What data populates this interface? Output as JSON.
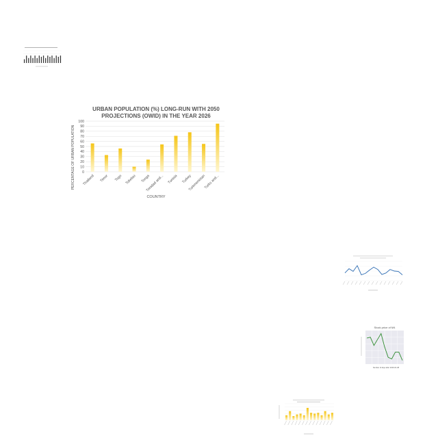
{
  "colors": {
    "bar": "#f5c518",
    "bar_fade": "#fff6cf",
    "line_blue": "#2f6db3",
    "line_green": "#2e8b2e",
    "grid": "#dddddd",
    "text": "#555555",
    "panel_gray": "#e9e9f0"
  },
  "chart_data": [
    {
      "type": "bar",
      "title": "",
      "xlabel": "",
      "ylabel": "",
      "categories": [
        "",
        "",
        "",
        "",
        "",
        "",
        "",
        "",
        "",
        "",
        "",
        "",
        "",
        "",
        "",
        "",
        "",
        ""
      ],
      "values": [
        30,
        60,
        40,
        60,
        40,
        60,
        40,
        60,
        50,
        60,
        40,
        60,
        50,
        60,
        40,
        60,
        50,
        60
      ],
      "ylim": [
        0,
        100
      ]
    },
    {
      "type": "bar",
      "title": "URBAN POPULATION (%) LONG-RUN WITH 2050 PROJECTIONS (OWID) IN THE YEAR 2026",
      "title_lines": [
        "URBAN POPULATION (%) LONG-RUN WITH 2050",
        "PROJECTIONS (OWID) IN THE YEAR 2026"
      ],
      "xlabel": "COUNTRY",
      "ylabel": "PERCENTAGE OF URBAN POPULATION",
      "categories": [
        "Thailand",
        "Timor",
        "Togo",
        "Tokelau",
        "Tonga",
        "Trinidad and...",
        "Tunisia",
        "Turkey",
        "Turkmenistan",
        "Turks and..."
      ],
      "values": [
        56,
        33,
        46,
        10,
        24,
        54,
        71,
        78,
        55,
        95
      ],
      "yticks": [
        0,
        10,
        20,
        30,
        40,
        50,
        60,
        70,
        80,
        90,
        100
      ],
      "ylim": [
        0,
        100
      ],
      "grid": true,
      "legend": "none"
    },
    {
      "type": "line",
      "title": "",
      "xlabel": "",
      "ylabel": "",
      "y": [
        40,
        62,
        48,
        78,
        30,
        38,
        55,
        70,
        58,
        32,
        40,
        58,
        50,
        48,
        30
      ],
      "ylim": [
        0,
        100
      ]
    },
    {
      "type": "line",
      "title": "Stock price of M4",
      "xlabel": "Number of days after 2016-01-08",
      "ylabel": "",
      "x": [
        0,
        1,
        2,
        3,
        4,
        5,
        6,
        7,
        8,
        9,
        10
      ],
      "y": [
        4.0,
        4.1,
        3.0,
        3.8,
        4.6,
        2.8,
        1.4,
        1.2,
        2.1,
        2.1,
        1.0
      ],
      "ylim": [
        0.5,
        5
      ],
      "grid": true
    },
    {
      "type": "bar",
      "title": "",
      "xlabel": "",
      "ylabel": "",
      "categories": [
        "",
        "",
        "",
        "",
        "",
        "",
        "",
        "",
        "",
        "",
        "",
        "",
        "",
        ""
      ],
      "values": [
        30,
        55,
        25,
        35,
        40,
        30,
        75,
        45,
        40,
        45,
        30,
        55,
        35,
        45
      ],
      "ylim": [
        0,
        100
      ]
    }
  ]
}
